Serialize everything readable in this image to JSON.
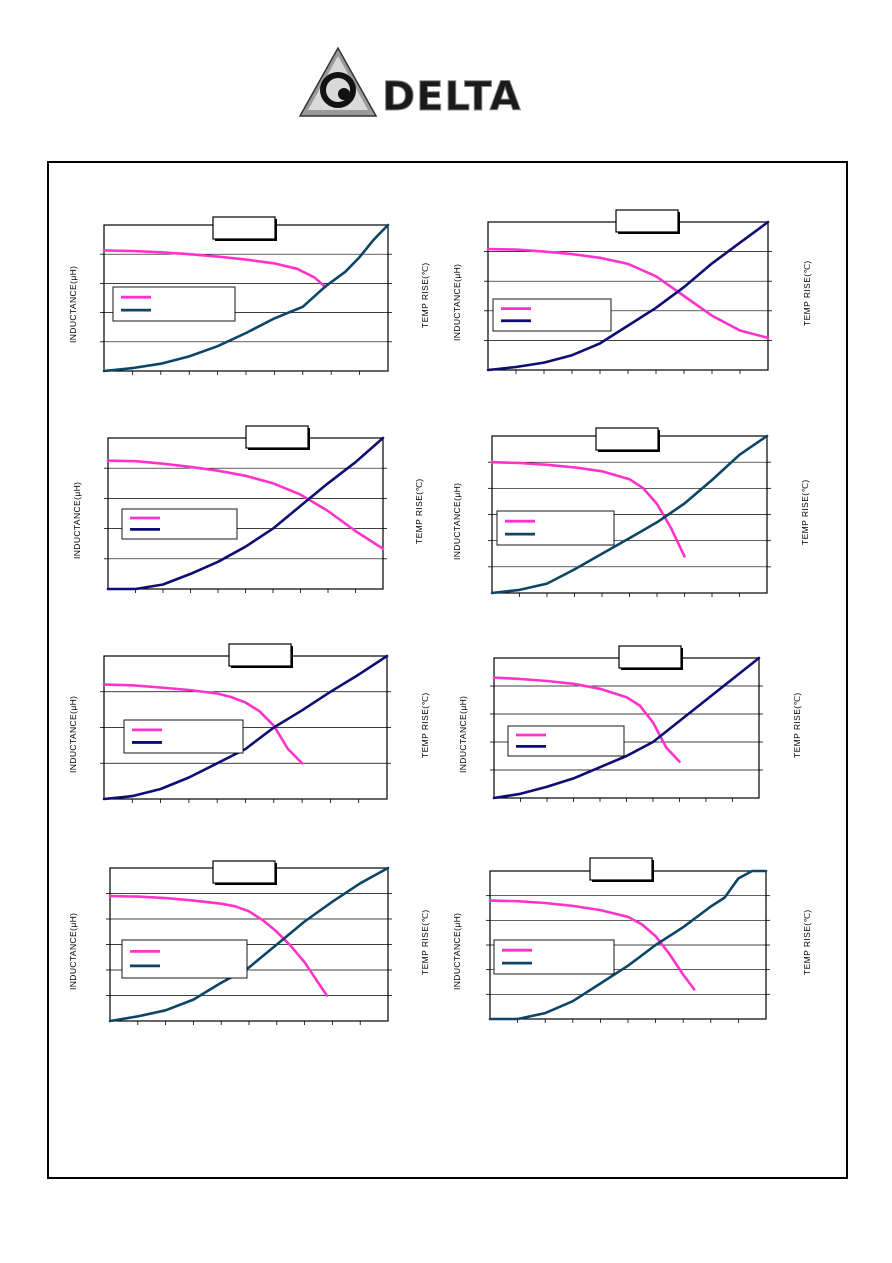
{
  "header": {
    "logo_text": "DELTA",
    "logo_icon": "delta-triangle-logo",
    "colors": {
      "logo_fill": "#1a1a1a",
      "logo_gray": "#8c8c8c"
    }
  },
  "axis_labels": {
    "inductance": "INDUCTANCE(μH)",
    "temp_rise": "TEMP RISE(℃)"
  },
  "colors": {
    "inductance_curve": "#ff33cc",
    "temp_curve_a": "#0d0d73",
    "temp_curve_b": "#0d4566"
  },
  "chart_data": [
    {
      "type": "line",
      "title": "",
      "xlabel": "",
      "ylabel": "INDUCTANCE(μH)",
      "y2label": "TEMP RISE(℃)",
      "xlim": [
        0,
        1
      ],
      "ylim": [
        0,
        6
      ],
      "y2lim": [
        0,
        1
      ],
      "grid": "horizontal",
      "legend": "center-left",
      "series": [
        {
          "axis": "left",
          "color": "#ff33cc",
          "x": [
            0,
            0.1,
            0.2,
            0.3,
            0.4,
            0.5,
            0.6,
            0.68,
            0.74,
            0.78
          ],
          "y": [
            4.95,
            4.93,
            4.88,
            4.8,
            4.7,
            4.58,
            4.42,
            4.2,
            3.85,
            3.45
          ]
        },
        {
          "axis": "right",
          "color": "#0d4566",
          "x": [
            0,
            0.1,
            0.2,
            0.3,
            0.4,
            0.5,
            0.55,
            0.6,
            0.65,
            0.7,
            0.78,
            0.85,
            0.9,
            0.95,
            1.0
          ],
          "y": [
            0,
            0.02,
            0.05,
            0.1,
            0.17,
            0.26,
            0.31,
            0.36,
            0.4,
            0.44,
            0.58,
            0.68,
            0.78,
            0.9,
            1.0
          ]
        }
      ]
    },
    {
      "type": "line",
      "title": "",
      "xlabel": "",
      "ylabel": "INDUCTANCE(μH)",
      "y2label": "TEMP RISE(℃)",
      "xlim": [
        0,
        1
      ],
      "ylim": [
        0,
        6
      ],
      "y2lim": [
        0,
        1
      ],
      "grid": "horizontal",
      "legend": "center-left",
      "series": [
        {
          "axis": "left",
          "color": "#ff33cc",
          "x": [
            0,
            0.1,
            0.2,
            0.3,
            0.4,
            0.5,
            0.6,
            0.7,
            0.8,
            0.9,
            1.0
          ],
          "y": [
            4.9,
            4.88,
            4.8,
            4.7,
            4.55,
            4.3,
            3.8,
            3.0,
            2.2,
            1.6,
            1.3
          ]
        },
        {
          "axis": "right",
          "color": "#0d0d73",
          "x": [
            0,
            0.1,
            0.2,
            0.3,
            0.4,
            0.5,
            0.6,
            0.7,
            0.8,
            0.9,
            1.0
          ],
          "y": [
            0,
            0.02,
            0.05,
            0.1,
            0.18,
            0.3,
            0.42,
            0.56,
            0.72,
            0.86,
            1.0
          ]
        }
      ]
    },
    {
      "type": "line",
      "title": "",
      "xlabel": "",
      "ylabel": "INDUCTANCE(μH)",
      "y2label": "TEMP RISE(℃)",
      "xlim": [
        0,
        1
      ],
      "ylim": [
        0,
        6
      ],
      "y2lim": [
        0,
        1
      ],
      "grid": "horizontal",
      "legend": "center-left",
      "series": [
        {
          "axis": "left",
          "color": "#ff33cc",
          "x": [
            0,
            0.1,
            0.2,
            0.3,
            0.4,
            0.5,
            0.6,
            0.7,
            0.8,
            0.9,
            1.0
          ],
          "y": [
            5.1,
            5.08,
            4.98,
            4.85,
            4.7,
            4.5,
            4.2,
            3.75,
            3.1,
            2.3,
            1.6
          ]
        },
        {
          "axis": "right",
          "color": "#0d0d73",
          "x": [
            0,
            0.1,
            0.2,
            0.3,
            0.4,
            0.5,
            0.6,
            0.7,
            0.8,
            0.9,
            1.0
          ],
          "y": [
            0,
            0.0,
            0.03,
            0.1,
            0.18,
            0.28,
            0.4,
            0.55,
            0.7,
            0.84,
            1.0
          ]
        }
      ]
    },
    {
      "type": "line",
      "title": "",
      "xlabel": "",
      "ylabel": "INDUCTANCE(μH)",
      "y2label": "TEMP RISE(℃)",
      "xlim": [
        0,
        1
      ],
      "ylim": [
        0,
        6
      ],
      "y2lim": [
        0,
        1
      ],
      "grid": "horizontal",
      "legend": "center-left",
      "series": [
        {
          "axis": "left",
          "color": "#ff33cc",
          "x": [
            0,
            0.1,
            0.2,
            0.3,
            0.4,
            0.5,
            0.55,
            0.6,
            0.65,
            0.7
          ],
          "y": [
            5.0,
            4.97,
            4.9,
            4.8,
            4.65,
            4.35,
            4.0,
            3.4,
            2.5,
            1.4
          ]
        },
        {
          "axis": "right",
          "color": "#0d4566",
          "x": [
            0,
            0.1,
            0.2,
            0.3,
            0.4,
            0.5,
            0.6,
            0.7,
            0.8,
            0.9,
            1.0
          ],
          "y": [
            0,
            0.02,
            0.06,
            0.15,
            0.25,
            0.35,
            0.45,
            0.57,
            0.72,
            0.88,
            1.0
          ]
        }
      ]
    },
    {
      "type": "line",
      "title": "",
      "xlabel": "",
      "ylabel": "INDUCTANCE(μH)",
      "y2label": "TEMP RISE(℃)",
      "xlim": [
        0,
        1
      ],
      "ylim": [
        0,
        4
      ],
      "y2lim": [
        0,
        1
      ],
      "grid": "horizontal",
      "legend": "center-left",
      "series": [
        {
          "axis": "left",
          "color": "#ff33cc",
          "x": [
            0,
            0.1,
            0.2,
            0.3,
            0.4,
            0.45,
            0.5,
            0.55,
            0.6,
            0.65,
            0.7
          ],
          "y": [
            3.2,
            3.18,
            3.12,
            3.05,
            2.95,
            2.85,
            2.7,
            2.45,
            2.05,
            1.4,
            1.0
          ]
        },
        {
          "axis": "right",
          "color": "#0d0d73",
          "x": [
            0,
            0.1,
            0.2,
            0.3,
            0.4,
            0.5,
            0.6,
            0.7,
            0.8,
            0.9,
            1.0
          ],
          "y": [
            0,
            0.02,
            0.07,
            0.15,
            0.25,
            0.35,
            0.5,
            0.62,
            0.75,
            0.87,
            1.0
          ]
        }
      ]
    },
    {
      "type": "line",
      "title": "",
      "xlabel": "",
      "ylabel": "INDUCTANCE(μH)",
      "y2label": "TEMP RISE(℃)",
      "xlim": [
        0,
        1
      ],
      "ylim": [
        0,
        5
      ],
      "y2lim": [
        0,
        1
      ],
      "grid": "horizontal",
      "legend": "center-left",
      "series": [
        {
          "axis": "left",
          "color": "#ff33cc",
          "x": [
            0,
            0.1,
            0.2,
            0.3,
            0.4,
            0.5,
            0.55,
            0.6,
            0.65,
            0.7
          ],
          "y": [
            4.3,
            4.25,
            4.18,
            4.08,
            3.9,
            3.6,
            3.3,
            2.7,
            1.8,
            1.3
          ]
        },
        {
          "axis": "right",
          "color": "#0d0d73",
          "x": [
            0,
            0.1,
            0.2,
            0.3,
            0.4,
            0.5,
            0.6,
            0.7,
            0.8,
            0.9,
            1.0
          ],
          "y": [
            0,
            0.03,
            0.08,
            0.14,
            0.22,
            0.3,
            0.4,
            0.55,
            0.7,
            0.85,
            1.0
          ]
        }
      ]
    },
    {
      "type": "line",
      "title": "",
      "xlabel": "",
      "ylabel": "INDUCTANCE(μH)",
      "y2label": "TEMP RISE(℃)",
      "xlim": [
        0,
        1
      ],
      "ylim": [
        0,
        6
      ],
      "y2lim": [
        0,
        1
      ],
      "grid": "horizontal",
      "legend": "center-left",
      "series": [
        {
          "axis": "left",
          "color": "#ff33cc",
          "x": [
            0,
            0.1,
            0.2,
            0.3,
            0.4,
            0.45,
            0.5,
            0.55,
            0.6,
            0.65,
            0.7,
            0.78
          ],
          "y": [
            4.9,
            4.88,
            4.82,
            4.72,
            4.6,
            4.5,
            4.3,
            3.95,
            3.5,
            2.95,
            2.3,
            1.0
          ]
        },
        {
          "axis": "right",
          "color": "#0d4566",
          "x": [
            0,
            0.1,
            0.2,
            0.3,
            0.4,
            0.5,
            0.6,
            0.7,
            0.8,
            0.9,
            1.0
          ],
          "y": [
            0,
            0.03,
            0.07,
            0.14,
            0.25,
            0.35,
            0.5,
            0.65,
            0.78,
            0.9,
            1.0
          ]
        }
      ]
    },
    {
      "type": "line",
      "title": "",
      "xlabel": "",
      "ylabel": "INDUCTANCE(μH)",
      "y2label": "TEMP RISE(℃)",
      "xlim": [
        0,
        1
      ],
      "ylim": [
        0,
        5
      ],
      "y2lim": [
        0,
        1
      ],
      "grid": "horizontal",
      "legend": "center-left",
      "series": [
        {
          "axis": "left",
          "color": "#ff33cc",
          "x": [
            0,
            0.1,
            0.2,
            0.3,
            0.4,
            0.5,
            0.55,
            0.6,
            0.65,
            0.7,
            0.74
          ],
          "y": [
            4.0,
            3.98,
            3.92,
            3.82,
            3.68,
            3.45,
            3.2,
            2.8,
            2.2,
            1.5,
            1.0
          ]
        },
        {
          "axis": "right",
          "color": "#0d4566",
          "x": [
            0,
            0.1,
            0.2,
            0.3,
            0.4,
            0.5,
            0.6,
            0.7,
            0.8,
            0.85,
            0.9,
            0.95,
            1.0
          ],
          "y": [
            0,
            0.0,
            0.04,
            0.12,
            0.24,
            0.36,
            0.5,
            0.62,
            0.76,
            0.82,
            0.95,
            1.0,
            1.0
          ]
        }
      ]
    }
  ]
}
